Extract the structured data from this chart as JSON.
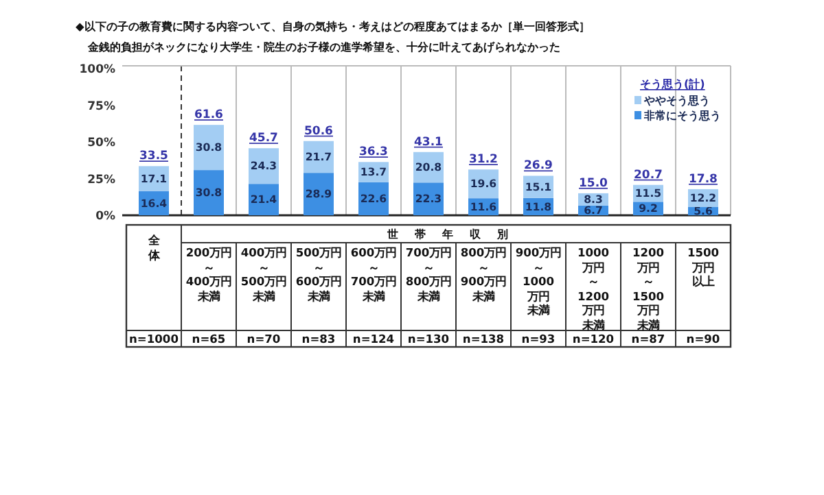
{
  "chart_data": {
    "type": "bar",
    "stacked": true,
    "title": "◆以下の子の教育費に関する内容ついて、自身の気持ち・考えはどの程度あてはまるか［単一回答形式］",
    "subtitle": "金銭的負担がネックになり大学生・院生のお子様の進学希望を、十分に叶えてあげられなかった",
    "xlabel": "世帯年収別",
    "legend_title": "そう思う(計)",
    "categories": [
      "全体",
      "200万円～400万円未満",
      "400万円～500万円未満",
      "500万円～600万円未満",
      "600万円～700万円未満",
      "700万円～800万円未満",
      "800万円～900万円未満",
      "900万円～1000万円未満",
      "1000万円～1200万円未満",
      "1200万円～1500万円未満",
      "1500万円以上"
    ],
    "series": [
      {
        "name": "非常にそう思う",
        "color": "#3d8fe3",
        "values": [
          16.4,
          30.8,
          21.4,
          28.9,
          22.6,
          22.3,
          11.6,
          11.8,
          6.7,
          9.2,
          5.6
        ]
      },
      {
        "name": "ややそう思う",
        "color": "#a3cdf3",
        "values": [
          17.1,
          30.8,
          24.3,
          21.7,
          13.7,
          20.8,
          19.6,
          15.1,
          8.3,
          11.5,
          12.2
        ]
      }
    ],
    "totals": [
      "33.5",
      "61.6",
      "45.7",
      "50.6",
      "36.3",
      "43.1",
      "31.2",
      "26.9",
      "15.0",
      "20.7",
      "17.8"
    ],
    "data_labels": true,
    "legend": "top right",
    "grid": false,
    "ylim": [
      0,
      100
    ],
    "yticks": [
      {
        "value": 0,
        "label": "0%"
      },
      {
        "value": 25,
        "label": "25%"
      },
      {
        "value": 50,
        "label": "50%"
      },
      {
        "value": 75,
        "label": "75%"
      },
      {
        "value": 100,
        "label": "100%"
      }
    ],
    "annotations": [
      "n=1000",
      "n=65",
      "n=70",
      "n=83",
      "n=124",
      "n=130",
      "n=138",
      "n=93",
      "n=120",
      "n=87",
      "n=90"
    ]
  }
}
